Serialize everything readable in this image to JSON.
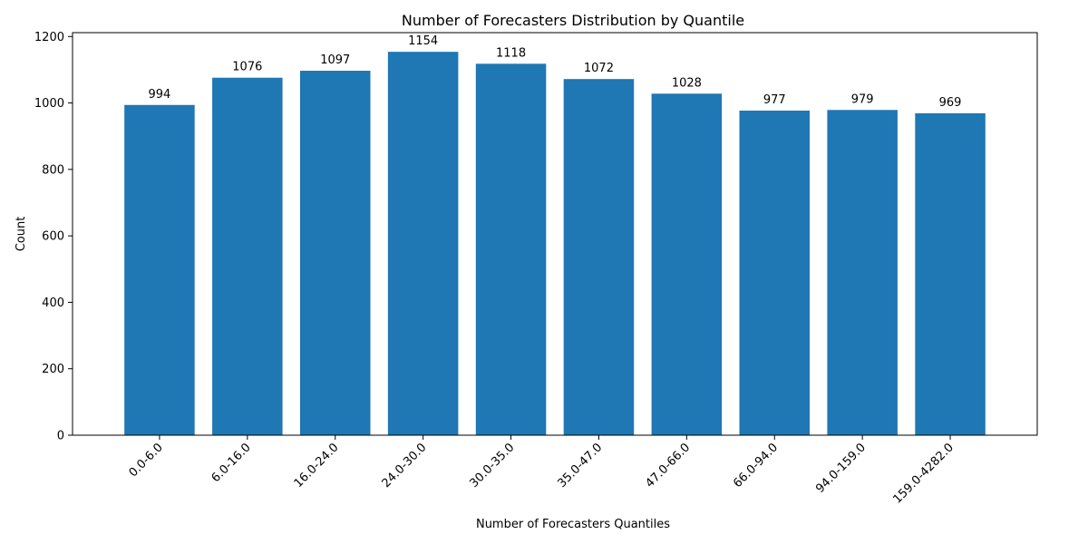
{
  "chart_data": {
    "type": "bar",
    "title": "Number of Forecasters Distribution by Quantile",
    "xlabel": "Number of Forecasters Quantiles",
    "ylabel": "Count",
    "categories": [
      "0.0-6.0",
      "6.0-16.0",
      "16.0-24.0",
      "24.0-30.0",
      "30.0-35.0",
      "35.0-47.0",
      "47.0-66.0",
      "66.0-94.0",
      "94.0-159.0",
      "159.0-4282.0"
    ],
    "values": [
      994,
      1076,
      1097,
      1154,
      1118,
      1072,
      1028,
      977,
      979,
      969
    ],
    "ylim": [
      0,
      1211.7
    ],
    "yticks": [
      0,
      200,
      400,
      600,
      800,
      1000,
      1200
    ],
    "bar_color": "#1f77b4",
    "grid": false,
    "legend": false
  }
}
